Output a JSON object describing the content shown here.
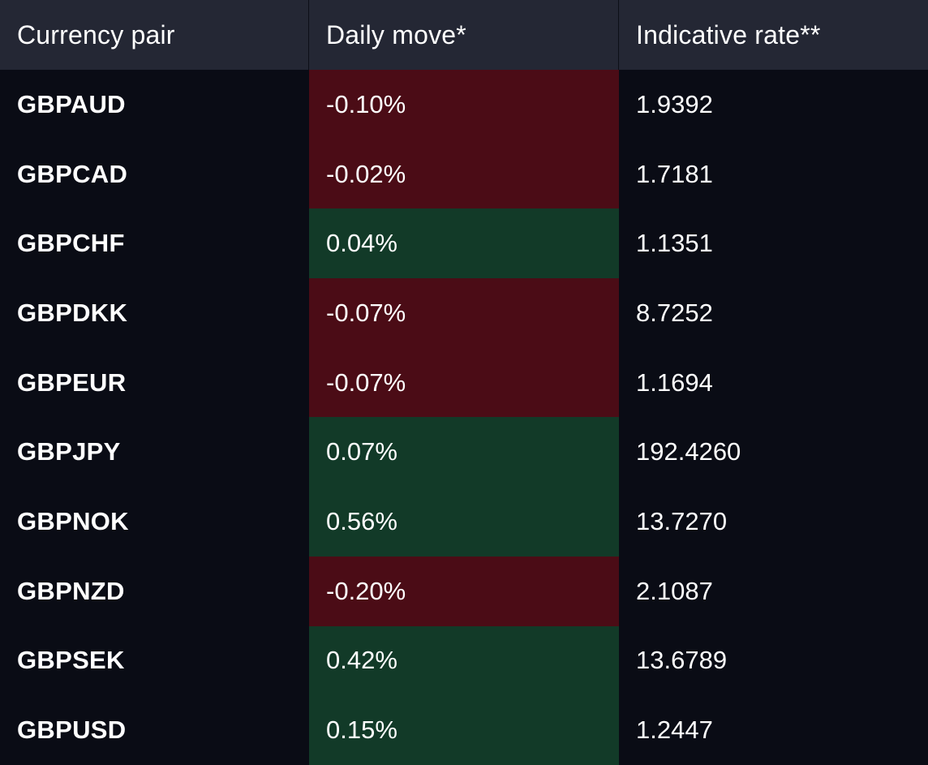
{
  "table": {
    "headers": {
      "pair": "Currency pair",
      "move": "Daily move*",
      "rate": "Indicative rate**"
    },
    "rows": [
      {
        "pair": "GBPAUD",
        "move": "-0.10%",
        "rate": "1.9392",
        "direction": "down"
      },
      {
        "pair": "GBPCAD",
        "move": "-0.02%",
        "rate": "1.7181",
        "direction": "down"
      },
      {
        "pair": "GBPCHF",
        "move": "0.04%",
        "rate": "1.1351",
        "direction": "up"
      },
      {
        "pair": "GBPDKK",
        "move": "-0.07%",
        "rate": "8.7252",
        "direction": "down"
      },
      {
        "pair": "GBPEUR",
        "move": "-0.07%",
        "rate": "1.1694",
        "direction": "down"
      },
      {
        "pair": "GBPJPY",
        "move": "0.07%",
        "rate": "192.4260",
        "direction": "up"
      },
      {
        "pair": "GBPNOK",
        "move": "0.56%",
        "rate": "13.7270",
        "direction": "up"
      },
      {
        "pair": "GBPNZD",
        "move": "-0.20%",
        "rate": "2.1087",
        "direction": "down"
      },
      {
        "pair": "GBPSEK",
        "move": "0.42%",
        "rate": "13.6789",
        "direction": "up"
      },
      {
        "pair": "GBPUSD",
        "move": "0.15%",
        "rate": "1.2447",
        "direction": "up"
      }
    ]
  },
  "colors": {
    "background": "#0a0c15",
    "header_background": "#242734",
    "negative_move": "#4b0c16",
    "positive_move": "#123a28",
    "text": "#ffffff"
  }
}
